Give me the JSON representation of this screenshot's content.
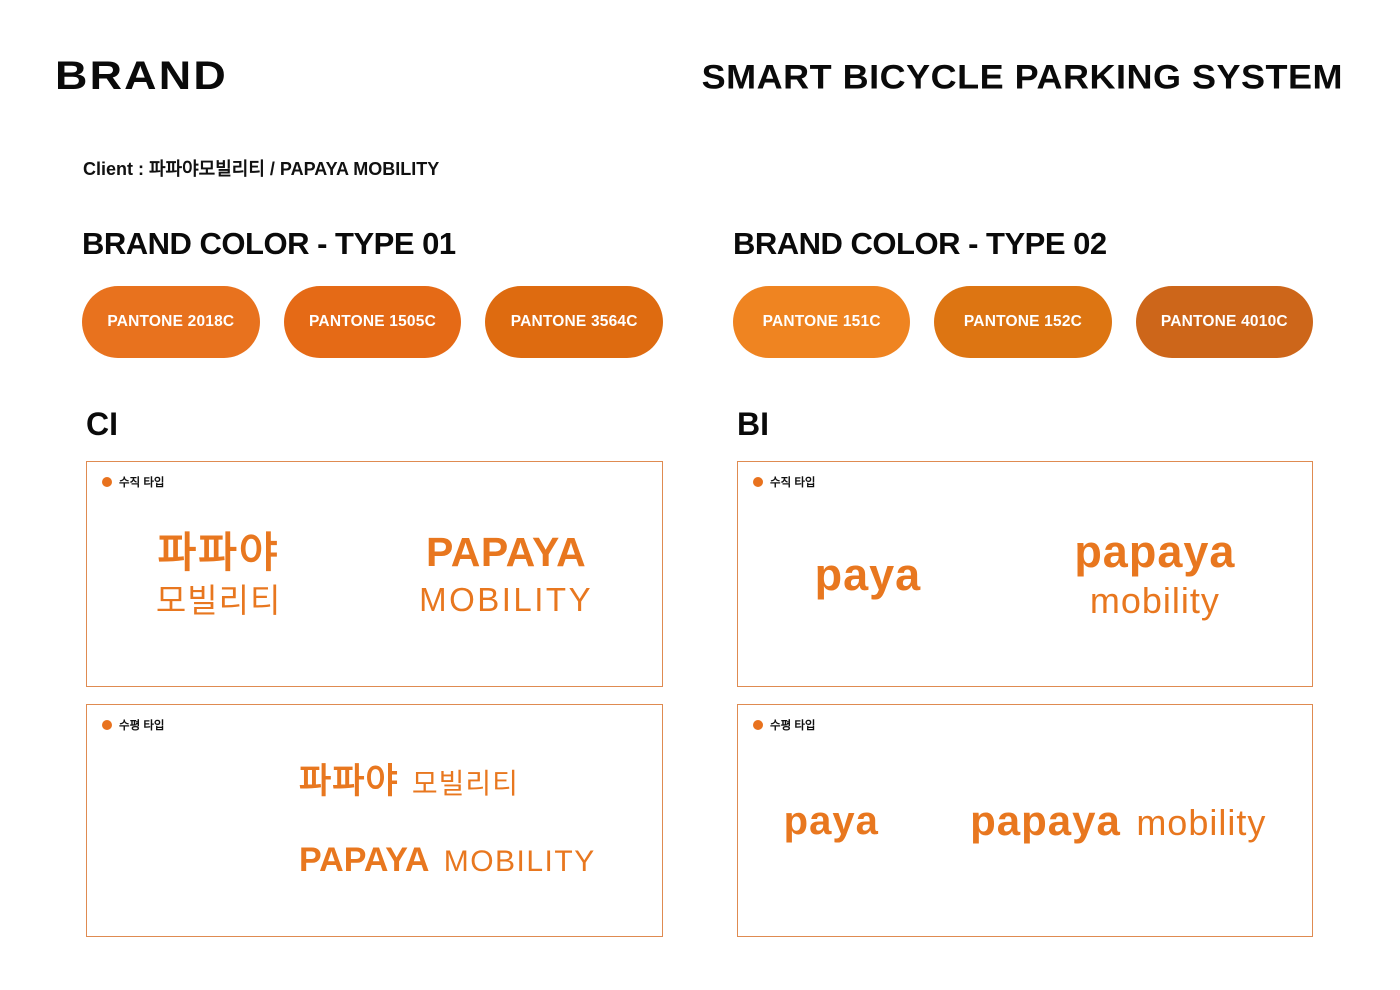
{
  "header": {
    "title_left": "BRAND",
    "title_right": "SMART BICYCLE PARKING SYSTEM",
    "client_line": "Client : 파파야모빌리티 / PAPAYA MOBILITY"
  },
  "colors": {
    "logo_orange": "#e8771f",
    "box_border": "#df8b51",
    "tag_dot": "#e8721e"
  },
  "type01": {
    "heading": "BRAND COLOR - TYPE 01",
    "swatches": [
      {
        "label": "PANTONE 2018C",
        "color": "#e8721e"
      },
      {
        "label": "PANTONE 1505C",
        "color": "#e56a16"
      },
      {
        "label": "PANTONE 3564C",
        "color": "#de6b10"
      }
    ]
  },
  "type02": {
    "heading": "BRAND COLOR - TYPE 02",
    "swatches": [
      {
        "label": "PANTONE 151C",
        "color": "#ef8421"
      },
      {
        "label": "PANTONE 152C",
        "color": "#dd7512"
      },
      {
        "label": "PANTONE 4010C",
        "color": "#cd661a"
      }
    ]
  },
  "ci": {
    "heading": "CI",
    "vertical": {
      "tag": "수직 타입",
      "kr_line1": "파파야",
      "kr_line2": "모빌리티",
      "en_line1": "PAPAYA",
      "en_line2": "MOBILITY"
    },
    "horizontal": {
      "tag": "수평 타입",
      "kr_strong": "파파야",
      "kr_light": "모빌리티",
      "en_strong": "PAPAYA",
      "en_light": "MOBILITY"
    }
  },
  "bi": {
    "heading": "BI",
    "vertical": {
      "tag": "수직 타입",
      "short_logo": "paya",
      "full_line1": "papaya",
      "full_line2": "mobility"
    },
    "horizontal": {
      "tag": "수평 타입",
      "short_logo": "paya",
      "full_strong": "papaya",
      "full_light": "mobility"
    }
  }
}
